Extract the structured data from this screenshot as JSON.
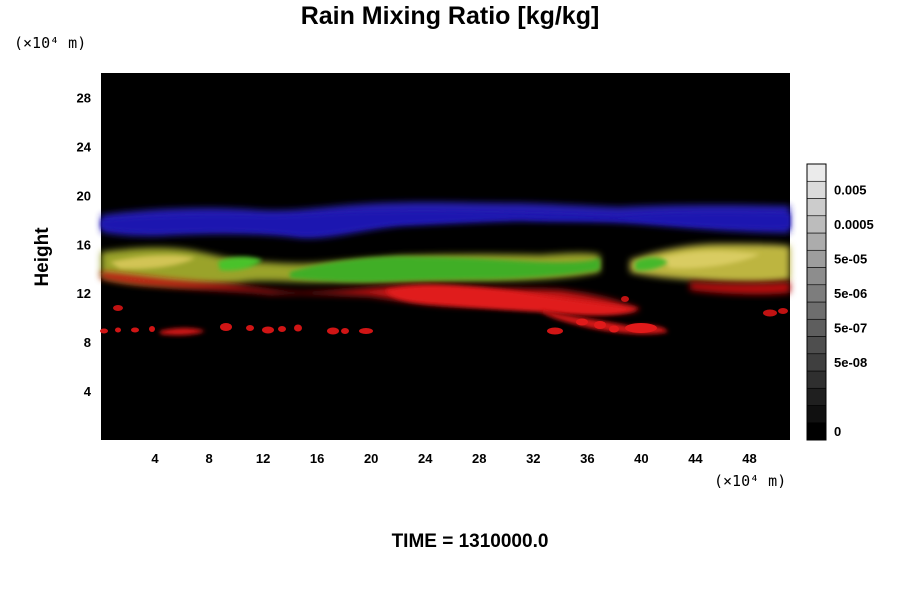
{
  "chart_data": {
    "type": "heatmap",
    "title": "Rain Mixing Ratio [kg/kg]",
    "ylabel": "Height",
    "x_unit": "(×10⁴ m)",
    "y_unit": "(×10⁴ m)",
    "xlim": [
      0,
      51
    ],
    "ylim": [
      0,
      30
    ],
    "x_ticks": [
      4,
      8,
      12,
      16,
      20,
      24,
      28,
      32,
      36,
      40,
      44,
      48
    ],
    "y_ticks": [
      4,
      8,
      12,
      16,
      20,
      24,
      28
    ],
    "colorbar": {
      "levels": 16,
      "labels": [
        "0.005",
        "0.0005",
        "5e-05",
        "5e-06",
        "5e-07",
        "5e-08",
        "0"
      ],
      "label_levels": [
        14,
        12,
        10,
        8,
        6,
        4,
        0
      ]
    },
    "bands": [
      {
        "color": "#2a22c4",
        "x": [
          0,
          51
        ],
        "y_bottom": 16,
        "y_top": 19.5,
        "description": "blue"
      },
      {
        "color": "#c1b33a",
        "x": [
          0,
          51
        ],
        "y_bottom": 12.5,
        "y_top": 16,
        "description": "yellow"
      },
      {
        "color": "#3fae25",
        "x": [
          9,
          41
        ],
        "y_bottom": 13,
        "y_top": 15.5,
        "description": "green"
      },
      {
        "color": "#c21212",
        "x": [
          0,
          51
        ],
        "y_bottom": 8.5,
        "y_top": 13,
        "description": "red"
      }
    ],
    "footer": "TIME = 1310000.0"
  }
}
